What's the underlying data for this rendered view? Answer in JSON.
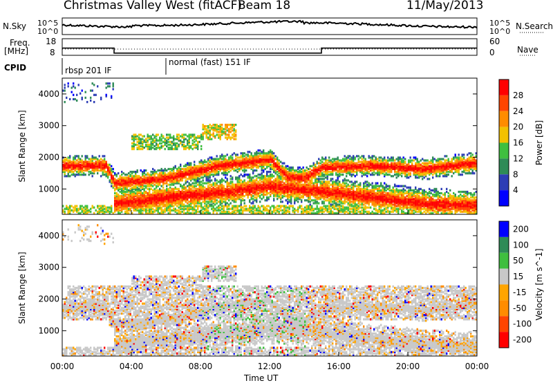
{
  "header": {
    "title": "Christmas Valley West (fitACF)",
    "beam": "Beam 18",
    "date": "11/May/2013"
  },
  "panel_labels": {
    "nsky": "N.Sky",
    "nsearch": "N.Search",
    "freq": "Freq.",
    "freq_unit": "[MHz]",
    "nave": "Nave",
    "cpid": "CPID"
  },
  "cpid_modes": [
    {
      "label": "rbsp 201 IF",
      "start_hour": 0
    },
    {
      "label": "normal (fast) 151 IF",
      "start_hour": 6
    }
  ],
  "colors": {
    "power": [
      "#0000ff",
      "#2d3db5",
      "#2e8b57",
      "#3fbf3f",
      "#f2c100",
      "#ff8c00",
      "#ff4500",
      "#ff0000"
    ],
    "velocity": [
      "#ff0000",
      "#ff4500",
      "#ff8c00",
      "#ffa500",
      "#c8c8c8",
      "#3fbf3f",
      "#2e8b57",
      "#0000ff"
    ]
  },
  "chart_data": [
    {
      "type": "line",
      "name_axis_left": "N.Sky",
      "name_axis_right": "N.Search",
      "ytick_labels_left": [
        "10^5",
        "10^0"
      ],
      "ytick_labels_right": [
        "10^5",
        "10^0"
      ],
      "x_range_hours": [
        0,
        24
      ]
    },
    {
      "type": "line",
      "ytick_labels_left": [
        "18",
        "8"
      ],
      "ytick_labels_right": [
        "60",
        "0"
      ],
      "series": [
        {
          "name": "Freq.",
          "x": [
            0,
            3,
            3,
            15,
            15,
            24
          ],
          "y": [
            14,
            14,
            11,
            11,
            14,
            14
          ]
        }
      ]
    },
    {
      "type": "heatmap",
      "ylabel": "Slant Range [km]",
      "yticks": [
        1000,
        2000,
        3000,
        4000
      ],
      "ylim": [
        200,
        4500
      ],
      "colorbar_label": "Power [dB]",
      "colorbar_ticks": [
        "4",
        "8",
        "12",
        "16",
        "20",
        "24",
        "28"
      ],
      "bands": [
        {
          "hours": [
            0,
            2.5,
            3,
            6,
            9,
            12,
            13,
            14,
            15,
            18,
            21,
            24
          ],
          "ranges_km": [
            1700,
            1700,
            1150,
            1300,
            1700,
            1900,
            1350,
            1300,
            1650,
            1700,
            1600,
            1800
          ]
        },
        {
          "hours": [
            3,
            6,
            9,
            12,
            15,
            18,
            21,
            24
          ],
          "ranges_km": [
            500,
            700,
            850,
            1050,
            900,
            700,
            500,
            450
          ]
        }
      ]
    },
    {
      "type": "heatmap",
      "ylabel": "Slant Range [km]",
      "yticks": [
        1000,
        2000,
        3000,
        4000
      ],
      "ylim": [
        200,
        4500
      ],
      "colorbar_label": "Velocity [m s^-1]",
      "colorbar_ticks": [
        "200",
        "100",
        "50",
        "15",
        "-15",
        "-50",
        "-100",
        "-200"
      ],
      "xlabel": "Time UT",
      "xtick_labels": [
        "00:00",
        "04:00",
        "08:00",
        "12:00",
        "16:00",
        "20:00",
        "00:00"
      ],
      "xlim_hours": [
        0,
        24
      ]
    }
  ]
}
